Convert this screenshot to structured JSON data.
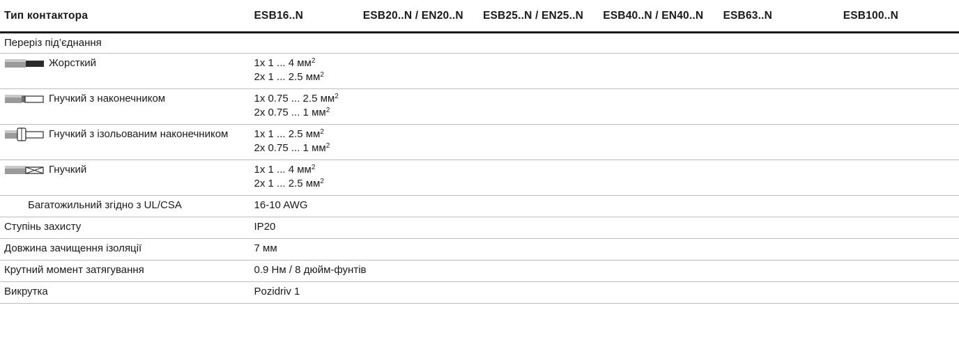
{
  "header": {
    "col_type": "Тип контактора",
    "cols": [
      "ESB16..N",
      "ESB20..N / EN20..N",
      "ESB25..N / EN25..N",
      "ESB40..N / EN40..N",
      "ESB63..N",
      "ESB100..N"
    ]
  },
  "rows": {
    "section": "Переріз під’єднання",
    "rigid": {
      "label": "Жорсткий",
      "icon": "rigid-wire-icon",
      "v1": "1x 1 ... 4 мм",
      "v2": "2x 1 ... 2.5 мм"
    },
    "flex_ferrule": {
      "label": "Гнучкий з наконечником",
      "icon": "ferrule-wire-icon",
      "v1": "1x 0.75 ... 2.5 мм",
      "v2": "2x 0.75 ... 1 мм"
    },
    "flex_insulated": {
      "label": "Гнучкий з ізольованим наконечником",
      "icon": "insulated-ferrule-wire-icon",
      "v1": "1x 1 ... 2.5 мм",
      "v2": "2x 0.75 ... 1 мм"
    },
    "flex": {
      "label": "Гнучкий",
      "icon": "stranded-wire-icon",
      "v1": "1x 1 ... 4 мм",
      "v2": "2x 1 ... 2.5 мм"
    },
    "ul": {
      "label": "Багатожильний згідно з UL/CSA",
      "value": "16-10 AWG"
    },
    "protection": {
      "label": "Ступінь захисту",
      "value": "IP20"
    },
    "strip": {
      "label": "Довжина зачищення ізоляції",
      "value": "7 мм"
    },
    "torque": {
      "label": "Крутний момент затягування",
      "value": "0.9 Нм / 8 дюйм-фунтів"
    },
    "screwdriver": {
      "label": "Викрутка",
      "value": "Pozidriv 1"
    }
  },
  "unit_superscript": "2",
  "colors": {
    "rule": "#1a1a1a",
    "divider": "#bdbdbd",
    "wire_dark": "#2b2b2b",
    "wire_mid": "#8a8a8a",
    "wire_light": "#d9d9d9"
  }
}
